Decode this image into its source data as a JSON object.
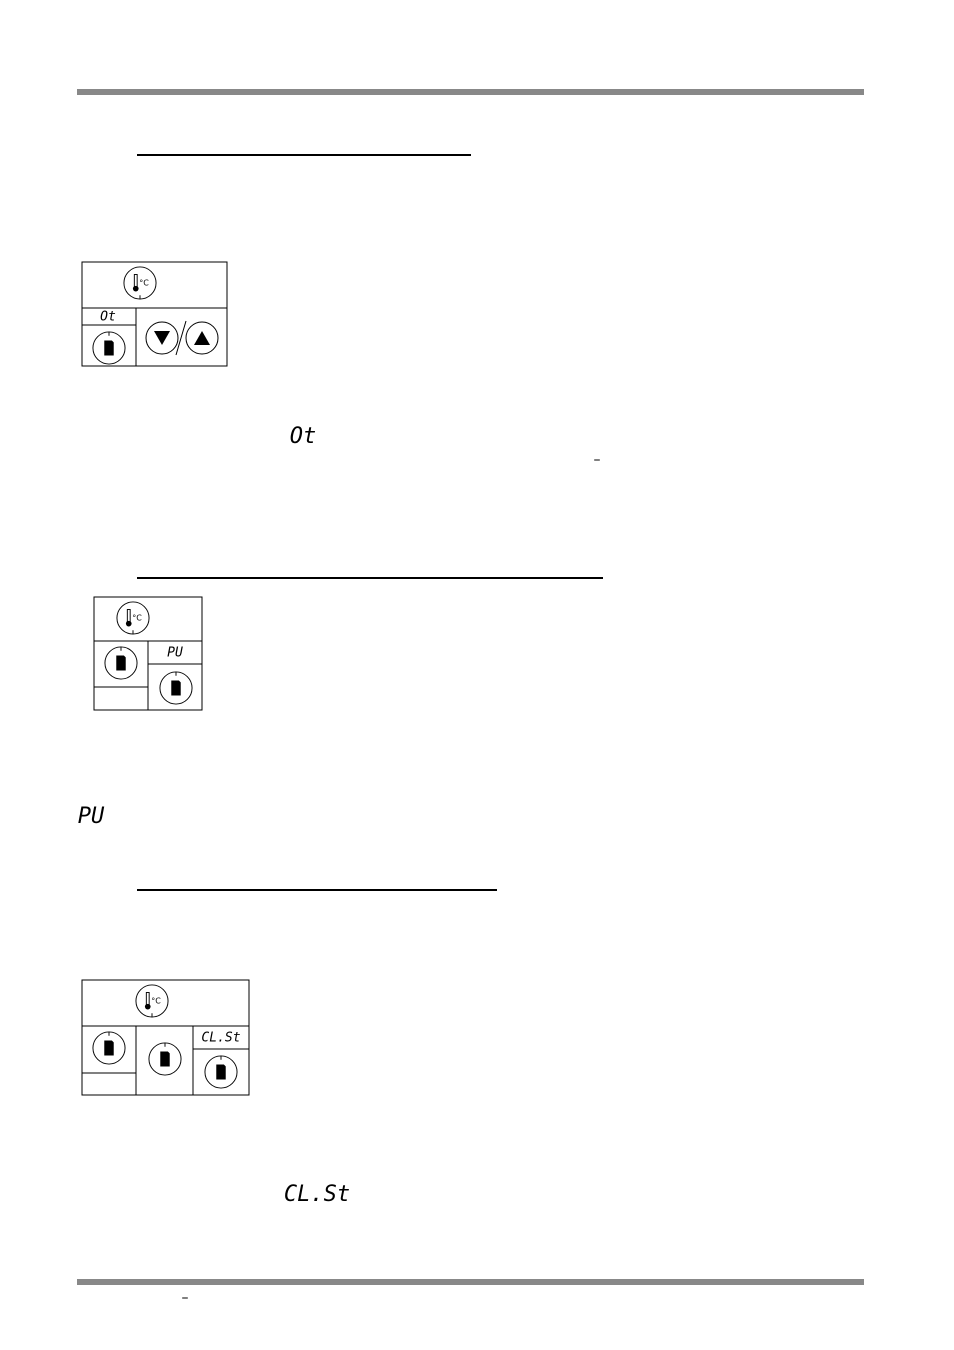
{
  "figures": [
    {
      "unit": "°C",
      "display": "Ot"
    },
    {
      "unit": "°C",
      "display": "PU"
    },
    {
      "unit": "°C",
      "display": "CL.St"
    }
  ],
  "text": {
    "code_1": "Ot",
    "dash_1": "–",
    "code_2": "PU",
    "code_3": "CL.St",
    "footer_dash": "–"
  }
}
